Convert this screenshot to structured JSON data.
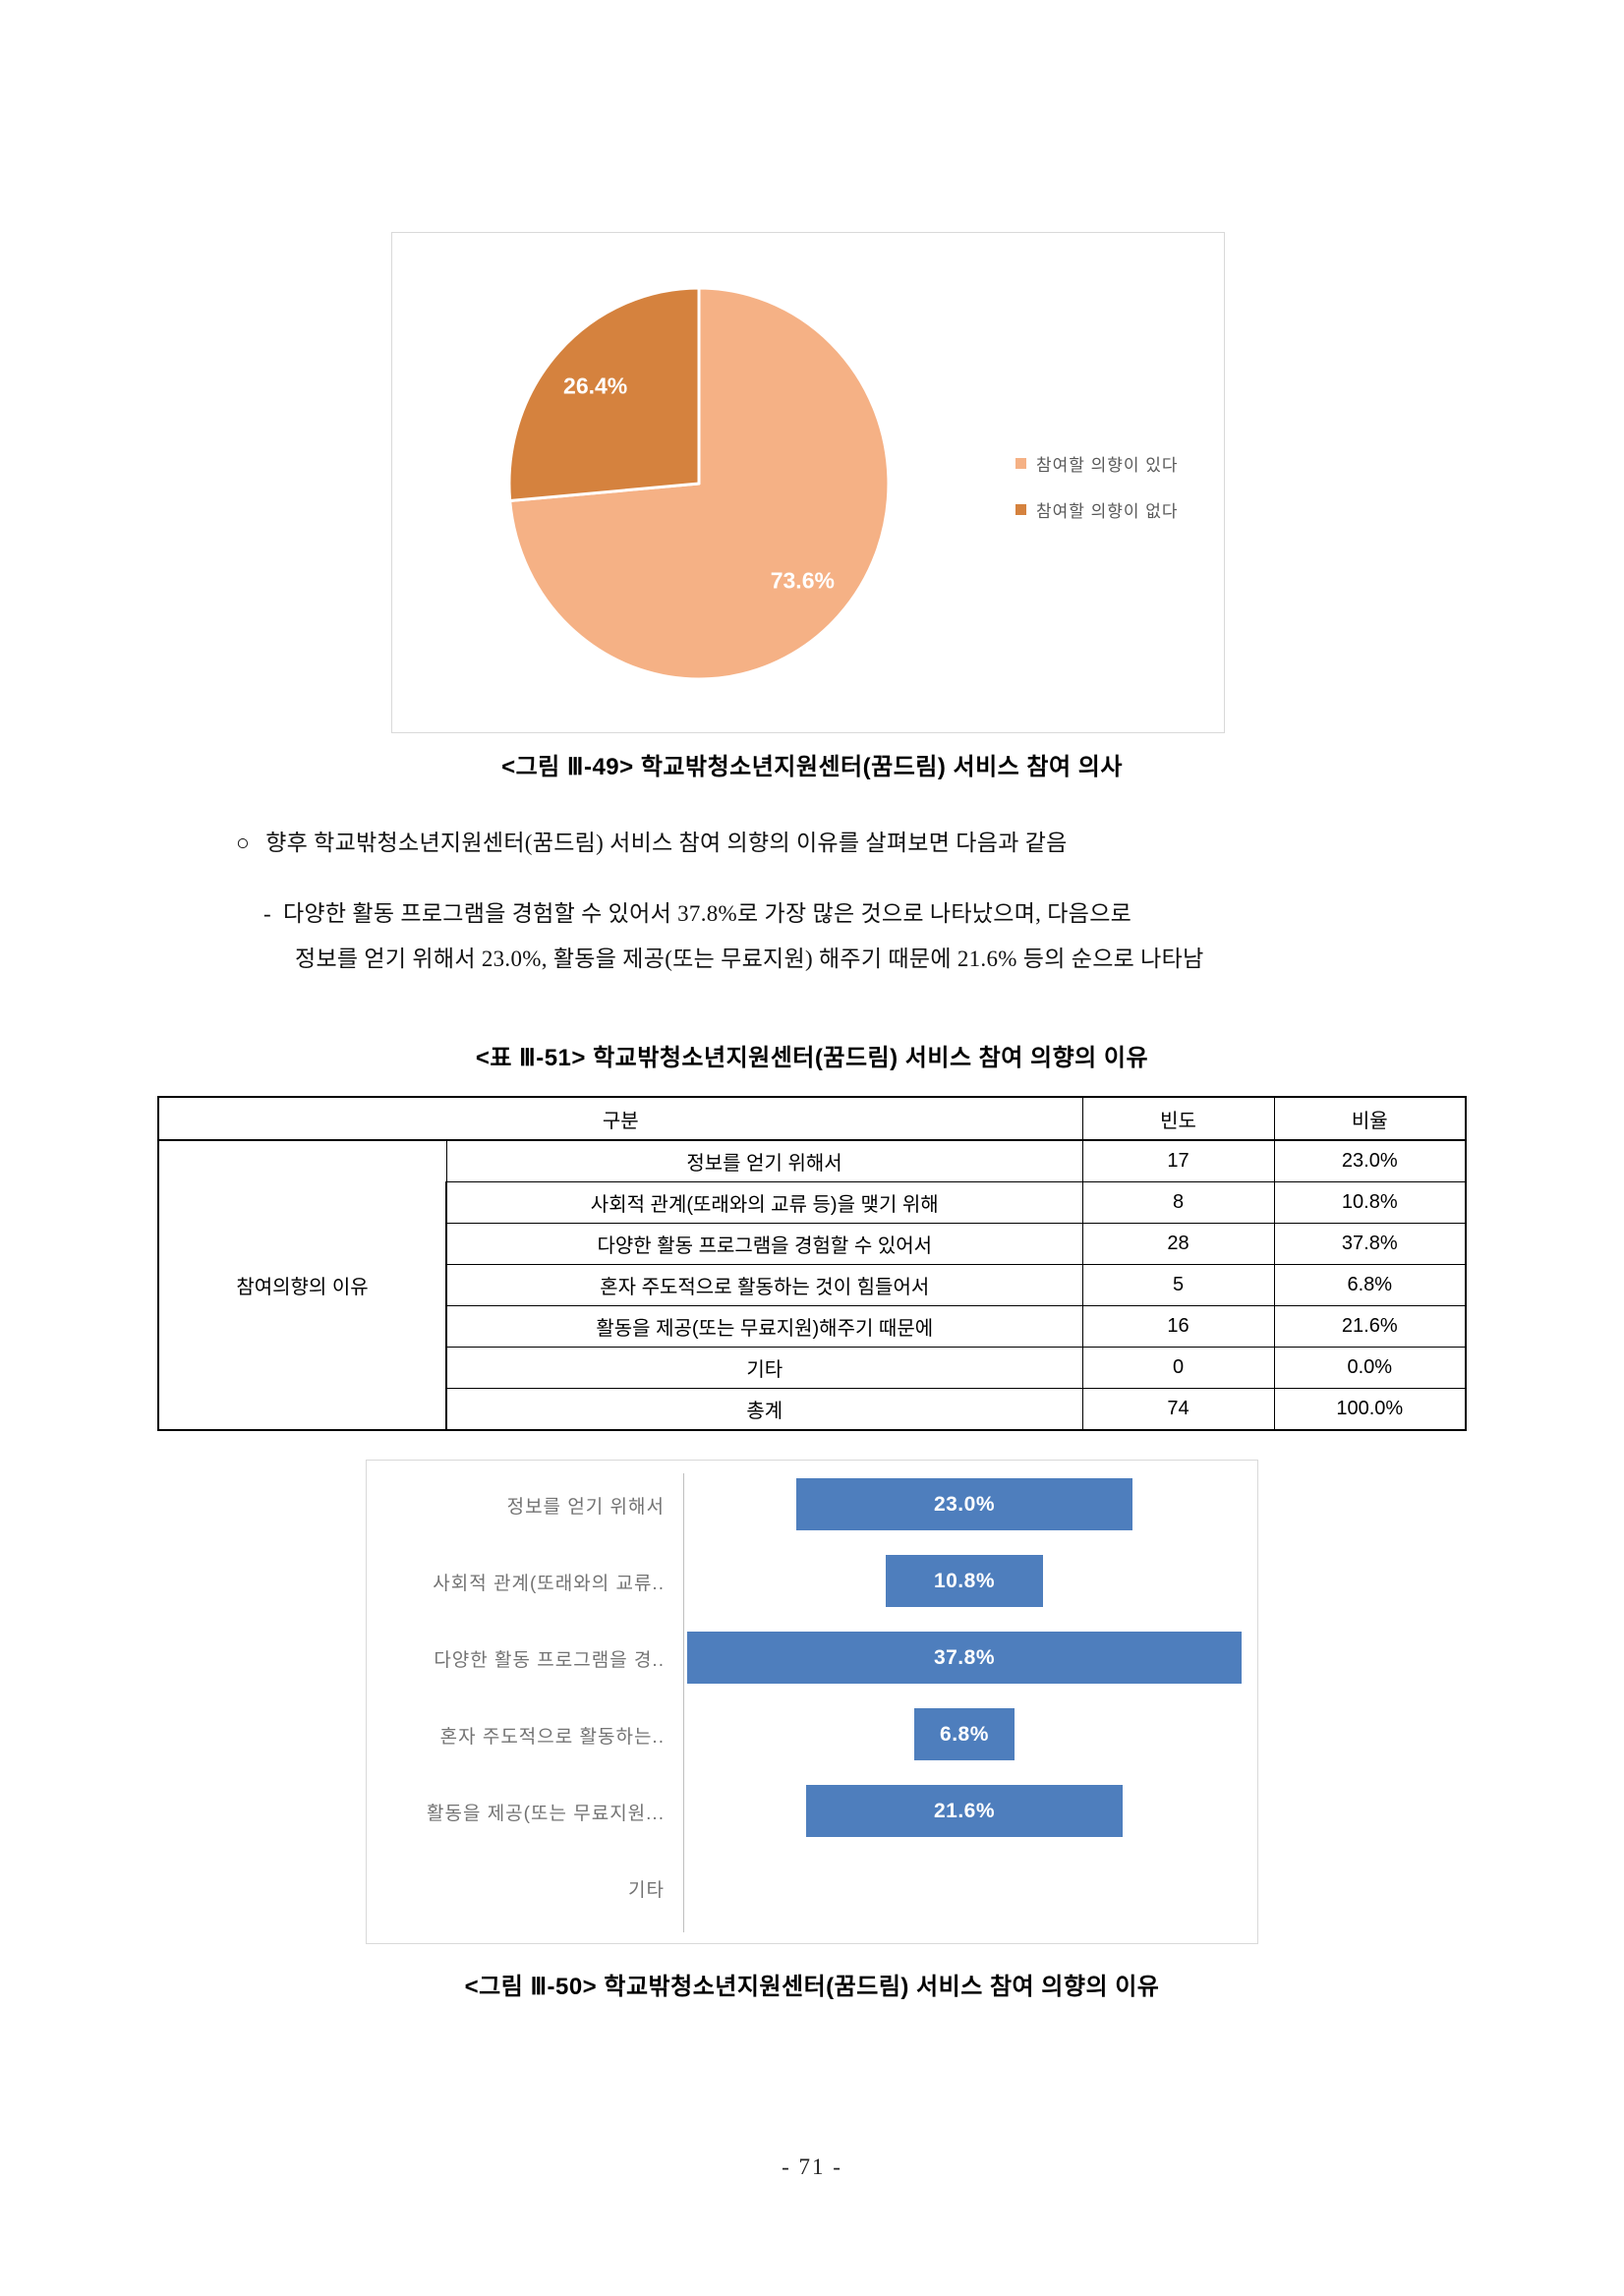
{
  "document": {
    "figure49_caption": "<그림  Ⅲ-49> 학교밖청소년지원센터(꿈드림) 서비스 참여 의사",
    "table51_caption": "<표  Ⅲ-51> 학교밖청소년지원센터(꿈드림) 서비스 참여 의향의 이유",
    "figure50_caption": "<그림  Ⅲ-50> 학교밖청소년지원센터(꿈드림) 서비스 참여 의향의 이유",
    "page_number": "- 71 -",
    "body": {
      "bullet_symbol": "○",
      "line1": "향후 학교밖청소년지원센터(꿈드림) 서비스 참여 의향의 이유를 살펴보면 다음과 같음",
      "dash_symbol": "-",
      "line2": "다양한 활동 프로그램을 경험할 수 있어서 37.8%로 가장 많은 것으로 나타났으며, 다음으로",
      "line3": "정보를 얻기 위해서 23.0%, 활동을 제공(또는 무료지원) 해주기 때문에 21.6% 등의 순으로 나타남"
    }
  },
  "table": {
    "header": [
      "구분",
      "빈도",
      "비율"
    ],
    "group_label": "참여의향의 이유",
    "rows": [
      {
        "reason": "정보를 얻기 위해서",
        "freq": "17",
        "pct": "23.0%"
      },
      {
        "reason": "사회적 관계(또래와의 교류 등)을 맺기 위해",
        "freq": "8",
        "pct": "10.8%"
      },
      {
        "reason": "다양한 활동 프로그램을 경험할 수 있어서",
        "freq": "28",
        "pct": "37.8%"
      },
      {
        "reason": "혼자 주도적으로 활동하는 것이 힘들어서",
        "freq": "5",
        "pct": "6.8%"
      },
      {
        "reason": "활동을 제공(또는 무료지원)해주기 때문에",
        "freq": "16",
        "pct": "21.6%"
      },
      {
        "reason": "기타",
        "freq": "0",
        "pct": "0.0%"
      },
      {
        "reason": "총계",
        "freq": "74",
        "pct": "100.0%"
      }
    ]
  },
  "chart_data": [
    {
      "type": "pie",
      "title": "",
      "labels": [
        "참여할 의향이 있다",
        "참여할 의향이 없다"
      ],
      "values": [
        73.6,
        26.4
      ],
      "data_labels": [
        "73.6%",
        "26.4%"
      ],
      "colors": [
        "#F5B185",
        "#D5823E"
      ],
      "legend_position": "right",
      "start_angle_deg": 0,
      "direction": "clockwise"
    },
    {
      "type": "bar",
      "orientation": "horizontal",
      "alignment": "center",
      "categories": [
        "정보를 얻기 위해서",
        "사회적 관계(또래와의 교류..",
        "다양한 활동 프로그램을 경..",
        "혼자 주도적으로 활동하는..",
        "활동을 제공(또는 무료지원...",
        "기타"
      ],
      "values": [
        23.0,
        10.8,
        37.8,
        6.8,
        21.6,
        0
      ],
      "data_labels": [
        "23.0%",
        "10.8%",
        "37.8%",
        "6.8%",
        "21.6%",
        ""
      ],
      "bar_color": "#4e7ebd",
      "xlim": [
        0,
        40
      ],
      "grid": false,
      "legend_position": "none"
    }
  ]
}
